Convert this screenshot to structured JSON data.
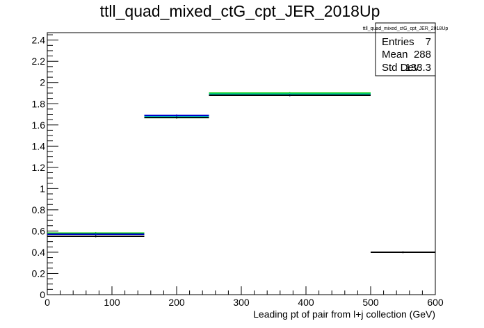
{
  "chart_data": {
    "type": "histogram",
    "title": "ttll_quad_mixed_ctG_cpt_JER_2018Up",
    "xlabel": "Leading pt of pair from l+j collection (GeV)",
    "ylabel": "",
    "xlim": [
      0,
      600
    ],
    "ylim": [
      0,
      2.47
    ],
    "grid": false,
    "x_ticks": [
      0,
      100,
      200,
      300,
      400,
      500,
      600
    ],
    "y_ticks": [
      0,
      0.2,
      0.4,
      0.6,
      0.8,
      1,
      1.2,
      1.4,
      1.6,
      1.8,
      2,
      2.2,
      2.4
    ],
    "x_tick_labels": [
      "0",
      "100",
      "200",
      "300",
      "400",
      "500",
      "600"
    ],
    "y_tick_labels": [
      "0",
      "0.2",
      "0.4",
      "0.6",
      "0.8",
      "1",
      "1.2",
      "1.4",
      "1.6",
      "1.8",
      "2",
      "2.2",
      "2.4"
    ],
    "bin_edges": [
      0,
      150,
      250,
      500,
      600
    ],
    "series": [
      {
        "color": "#00cc00",
        "values": [
          0.58,
          1.67,
          1.9,
          0.4
        ]
      },
      {
        "color": "#00cccc",
        "values": [
          0.57,
          1.68,
          1.89,
          0.4
        ]
      },
      {
        "color": "#0000cc",
        "values": [
          0.57,
          1.69,
          1.88,
          0.4
        ]
      },
      {
        "color": "#000000",
        "values": [
          0.55,
          1.67,
          1.88,
          0.4
        ]
      }
    ],
    "stats_box": {
      "title": "ttll_quad_mixed_ctG_cpt_JER_2018Up",
      "position": "top-right",
      "rows": [
        {
          "label": "Entries",
          "value": "7"
        },
        {
          "label": "Mean",
          "value": "288"
        },
        {
          "label": "Std Dev",
          "value": "133.3"
        }
      ]
    }
  }
}
